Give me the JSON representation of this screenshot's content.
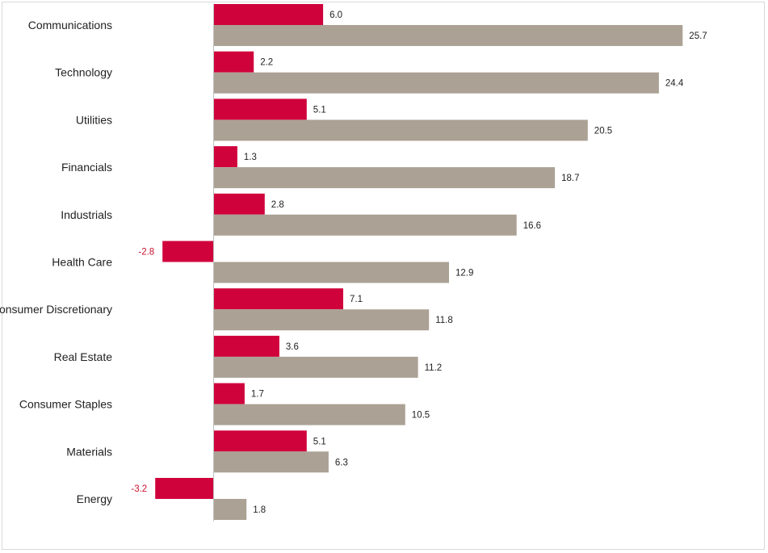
{
  "chart_data": {
    "type": "bar",
    "orientation": "horizontal",
    "categories": [
      "Communications",
      "Technology",
      "Utilities",
      "Financials",
      "Industrials",
      "Health Care",
      "Consumer Discretionary",
      "Real Estate",
      "Consumer Staples",
      "Materials",
      "Energy"
    ],
    "series": [
      {
        "color": "#d0023c",
        "values": [
          6.0,
          2.2,
          5.1,
          1.3,
          2.8,
          -2.8,
          7.1,
          3.6,
          1.7,
          5.1,
          -3.2
        ],
        "labels": [
          "6.0",
          "2.2",
          "5.1",
          "1.3",
          "2.8",
          "-2.8",
          "7.1",
          "3.6",
          "1.7",
          "5.1",
          "-3.2"
        ]
      },
      {
        "color": "#aba194",
        "values": [
          25.7,
          24.4,
          20.5,
          18.7,
          16.6,
          12.9,
          11.8,
          11.2,
          10.5,
          6.3,
          1.8
        ],
        "labels": [
          "25.7",
          "24.4",
          "20.5",
          "18.7",
          "16.6",
          "12.9",
          "11.8",
          "11.2",
          "10.5",
          "6.3",
          "1.8"
        ]
      }
    ],
    "negative_label_color": "#c8102e",
    "title": "",
    "xlabel": "",
    "ylabel": "",
    "xlim": [
      -3.2,
      25.7
    ],
    "grid": false,
    "legend": "none",
    "data_labels": true
  }
}
